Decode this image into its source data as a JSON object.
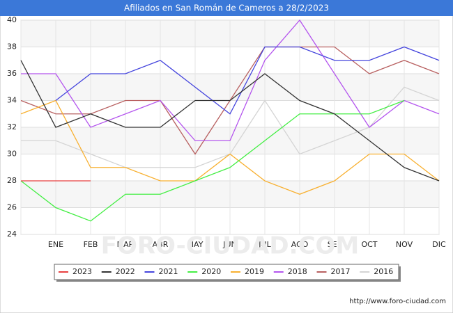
{
  "chart_data": {
    "type": "line",
    "title": "Afiliados en San Román de Cameros a 28/2/2023",
    "categories": [
      null,
      "ENE",
      "FEB",
      "MAR",
      "ABR",
      "MAY",
      "JUN",
      "JUL",
      "AGO",
      "SEP",
      "OCT",
      "NOV",
      "DIC"
    ],
    "ylim": [
      24,
      40
    ],
    "yticks": [
      24,
      26,
      28,
      30,
      32,
      34,
      36,
      38,
      40
    ],
    "grid": true,
    "legend": "bottom",
    "watermark": "FORO-CIUDAD.COM",
    "source": "http://www.foro-ciudad.com",
    "series": [
      {
        "name": "2023",
        "color": "#e84040",
        "values": [
          28,
          28,
          28,
          null,
          null,
          null,
          null,
          null,
          null,
          null,
          null,
          null,
          null
        ]
      },
      {
        "name": "2022",
        "color": "#333333",
        "values": [
          37,
          32,
          33,
          32,
          32,
          34,
          34,
          36,
          34,
          33,
          31,
          29,
          28
        ]
      },
      {
        "name": "2021",
        "color": "#4444dd",
        "values": [
          null,
          34,
          36,
          36,
          37,
          35,
          33,
          38,
          38,
          37,
          37,
          38,
          37
        ]
      },
      {
        "name": "2020",
        "color": "#44ee44",
        "values": [
          28,
          26,
          25,
          27,
          27,
          28,
          29,
          31,
          33,
          33,
          33,
          34,
          null
        ]
      },
      {
        "name": "2019",
        "color": "#f8b030",
        "values": [
          33,
          34,
          29,
          29,
          28,
          28,
          30,
          28,
          27,
          28,
          30,
          30,
          28
        ]
      },
      {
        "name": "2018",
        "color": "#b455ee",
        "values": [
          36,
          36,
          32,
          33,
          34,
          31,
          31,
          37,
          40,
          36,
          32,
          34,
          33
        ]
      },
      {
        "name": "2017",
        "color": "#b86060",
        "values": [
          34,
          33,
          33,
          34,
          34,
          30,
          34,
          38,
          38,
          38,
          36,
          37,
          36
        ]
      },
      {
        "name": "2016",
        "color": "#d4d4d4",
        "values": [
          31,
          31,
          30,
          29,
          29,
          29,
          30,
          34,
          30,
          31,
          32,
          35,
          34
        ]
      }
    ]
  }
}
